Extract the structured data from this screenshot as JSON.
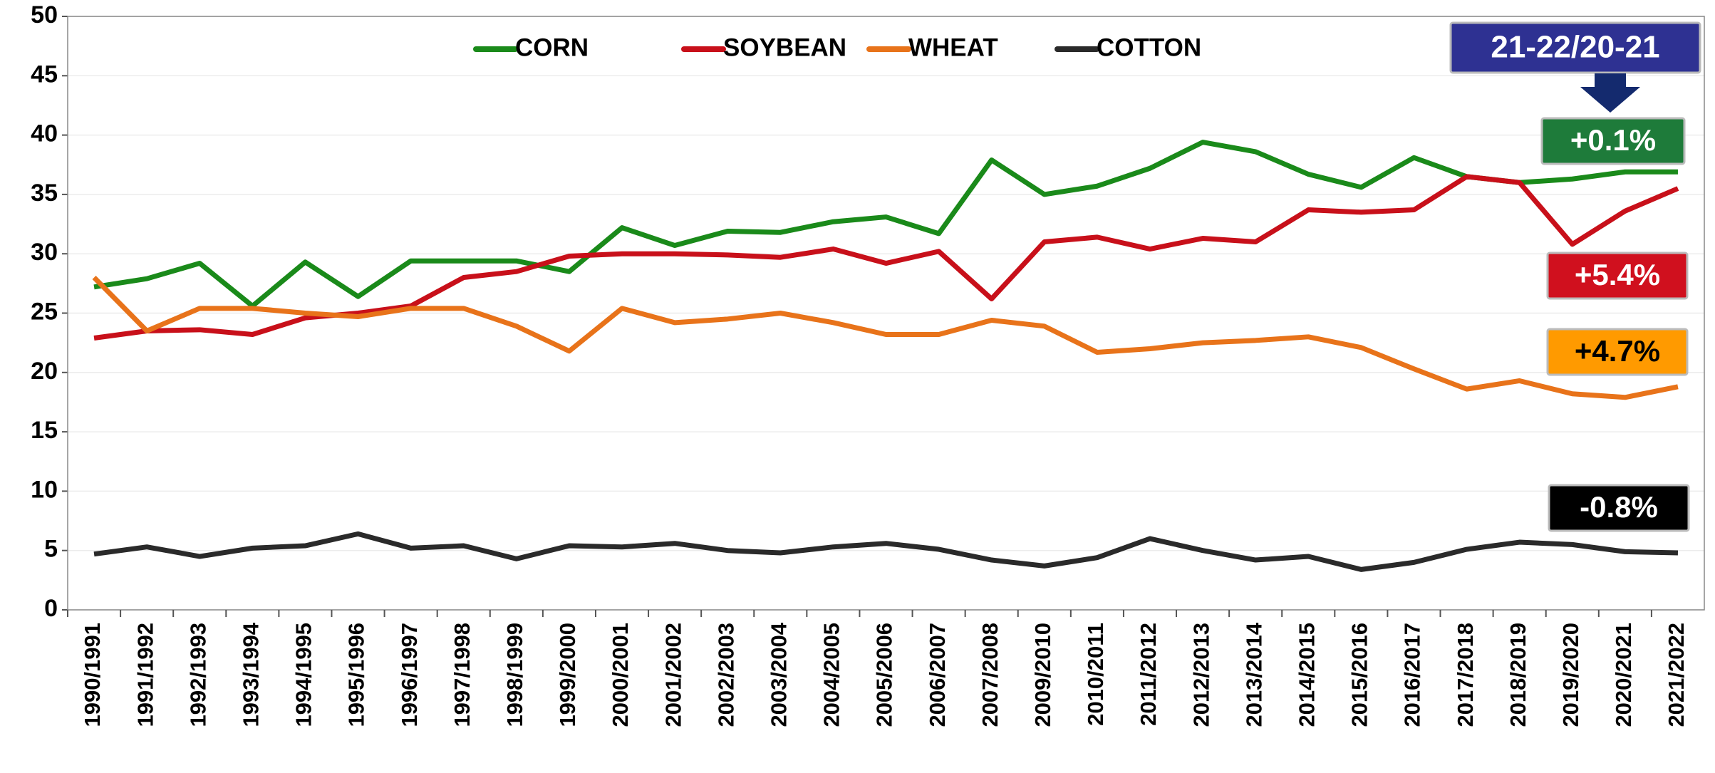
{
  "chart_data": {
    "type": "line",
    "categories": [
      "1990/1991",
      "1991/1992",
      "1992/1993",
      "1993/1994",
      "1994/1995",
      "1995/1996",
      "1996/1997",
      "1997/1998",
      "1998/1999",
      "1999/2000",
      "2000/2001",
      "2001/2002",
      "2002/2003",
      "2003/2004",
      "2004/2005",
      "2005/2006",
      "2006/2007",
      "2007/2008",
      "2009/2010",
      "2010/2011",
      "2011/2012",
      "2012/2013",
      "2013/2014",
      "2014/2015",
      "2015/2016",
      "2016/2017",
      "2017/2018",
      "2018/2019",
      "2019/2020",
      "2020/2021",
      "2021/2022"
    ],
    "series": [
      {
        "name": "CORN",
        "color": "#1a8a1a",
        "values": [
          27.2,
          27.9,
          29.2,
          25.6,
          29.3,
          26.4,
          29.4,
          29.4,
          29.4,
          28.5,
          32.2,
          30.7,
          31.9,
          31.8,
          32.7,
          33.1,
          31.7,
          37.9,
          35.0,
          35.7,
          37.2,
          39.4,
          38.6,
          36.7,
          35.6,
          38.1,
          36.5,
          36.0,
          36.3,
          36.9,
          36.9
        ]
      },
      {
        "name": "SOYBEAN",
        "color": "#c8101a",
        "values": [
          22.9,
          23.5,
          23.6,
          23.2,
          24.6,
          25.0,
          25.6,
          28.0,
          28.5,
          29.8,
          30.0,
          30.0,
          29.9,
          29.7,
          30.4,
          29.2,
          30.2,
          26.2,
          31.0,
          31.4,
          30.4,
          31.3,
          31.0,
          33.7,
          33.5,
          33.7,
          36.5,
          36.0,
          30.8,
          33.6,
          35.5
        ]
      },
      {
        "name": "WHEAT",
        "color": "#e8731a",
        "values": [
          28.0,
          23.5,
          25.4,
          25.4,
          25.0,
          24.7,
          25.4,
          25.4,
          23.9,
          21.8,
          25.4,
          24.2,
          24.5,
          25.0,
          24.2,
          23.2,
          23.2,
          24.4,
          23.9,
          21.7,
          22.0,
          22.5,
          22.7,
          23.0,
          22.1,
          20.3,
          18.6,
          19.3,
          18.2,
          17.9,
          18.8
        ]
      },
      {
        "name": "COTTON",
        "color": "#2a2a2a",
        "values": [
          4.7,
          5.3,
          4.5,
          5.2,
          5.4,
          6.4,
          5.2,
          5.4,
          4.3,
          5.4,
          5.3,
          5.6,
          5.0,
          4.8,
          5.3,
          5.6,
          5.1,
          4.2,
          3.7,
          4.4,
          6.0,
          5.0,
          4.2,
          4.5,
          3.4,
          4.0,
          5.1,
          5.7,
          5.5,
          4.9,
          4.8
        ]
      }
    ],
    "ylim": [
      0,
      50
    ],
    "yticks": [
      0,
      5,
      10,
      15,
      20,
      25,
      30,
      35,
      40,
      45,
      50
    ],
    "grid": true,
    "annotations": [
      {
        "text": "21-22/20-21",
        "color": "#2e3192",
        "text_color": "#ffffff"
      },
      {
        "text": "+0.1%",
        "color": "#1e7b3a",
        "text_color": "#ffffff"
      },
      {
        "text": "+5.4%",
        "color": "#d0101e",
        "text_color": "#ffffff"
      },
      {
        "text": "+4.7%",
        "color": "#ff9a00",
        "text_color": "#000000"
      },
      {
        "text": "-0.8%",
        "color": "#000000",
        "text_color": "#ffffff"
      }
    ]
  }
}
